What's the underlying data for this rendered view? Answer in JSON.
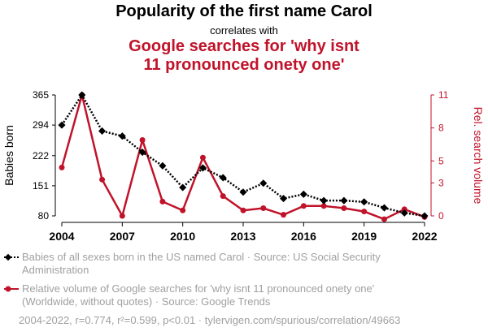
{
  "header": {
    "title": "Popularity of the first name Carol",
    "connector": "correlates with",
    "title2_line1": "Google searches for 'why isnt",
    "title2_line2": "11 pronounced onety one'"
  },
  "chart_data": {
    "type": "line",
    "x": [
      2004,
      2005,
      2006,
      2007,
      2008,
      2009,
      2010,
      2011,
      2012,
      2013,
      2014,
      2015,
      2016,
      2017,
      2018,
      2019,
      2020,
      2021,
      2022
    ],
    "x_ticks": [
      "2004",
      "2007",
      "2010",
      "2013",
      "2016",
      "2019",
      "2022"
    ],
    "x_tick_values": [
      2004,
      2007,
      2010,
      2013,
      2016,
      2019,
      2022
    ],
    "series": [
      {
        "axis": "left",
        "color": "#000000",
        "style": "dotted",
        "marker": "diamond",
        "values": [
          294,
          365,
          280,
          268,
          230,
          198,
          147,
          193,
          170,
          136,
          157,
          121,
          131,
          116,
          116,
          113,
          99,
          87,
          80
        ]
      },
      {
        "axis": "right",
        "color": "#c0132a",
        "style": "solid",
        "marker": "circle",
        "values": [
          4.4,
          11,
          3.3,
          0,
          6.9,
          1.3,
          0.5,
          5.3,
          1.8,
          0.5,
          0.7,
          0.1,
          0.9,
          0.9,
          0.7,
          0.4,
          -0.3,
          0.6,
          -0.1
        ]
      }
    ],
    "left_axis": {
      "label": "Babies born",
      "ticks": [
        "365",
        "294",
        "222",
        "151",
        "80"
      ],
      "tick_values": [
        365,
        294,
        222,
        151,
        80
      ],
      "range": [
        80,
        365
      ]
    },
    "right_axis": {
      "label": "Rel. search volume",
      "ticks": [
        "11",
        "8",
        "5",
        "3",
        "0"
      ],
      "tick_values": [
        11,
        8,
        5,
        3,
        0
      ],
      "range": [
        0,
        11
      ]
    },
    "x_range": [
      2004,
      2022
    ],
    "grid": false
  },
  "legend": {
    "series1": "Babies of all sexes born in the US named Carol · Source: US Social Security Administration",
    "series2": "Relative volume of Google searches for 'why isnt 11 pronounced onety one' (Worldwide, without quotes) · Source: Google Trends"
  },
  "footer": "2004-2022, r=0.774, r²=0.599, p<0.01 · tylervigen.com/spurious/correlation/49663",
  "colors": {
    "accent": "#c0132a",
    "text_muted": "#a0a0a0"
  }
}
